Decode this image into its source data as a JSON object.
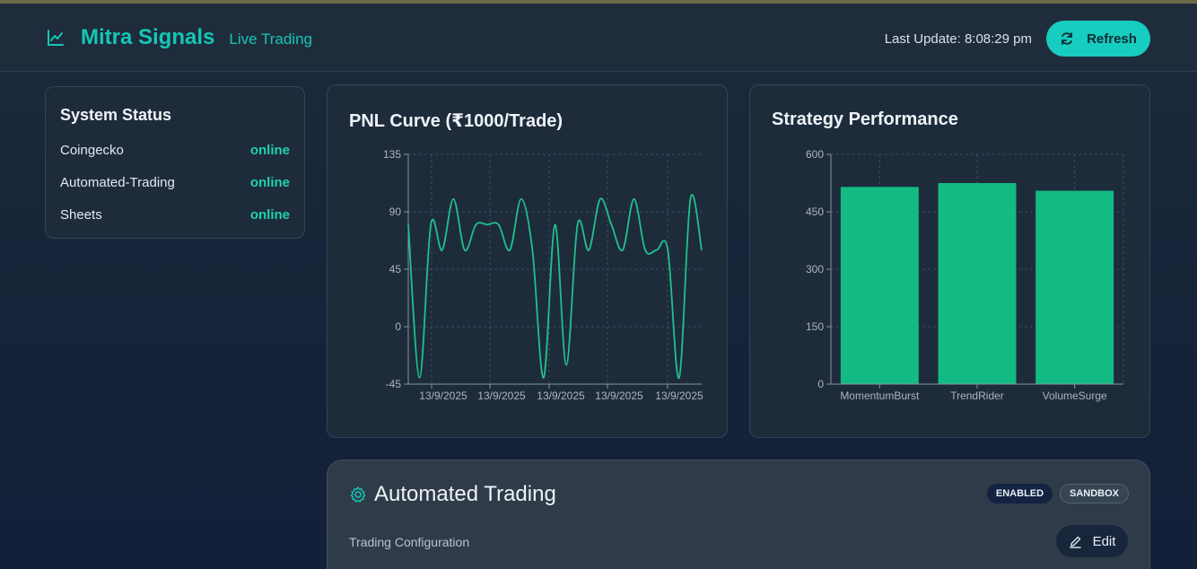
{
  "header": {
    "brand_title": "Mitra Signals",
    "brand_subtitle": "Live Trading",
    "last_update": "Last Update: 8:08:29 pm",
    "refresh_label": "Refresh"
  },
  "status": {
    "title": "System Status",
    "services": [
      {
        "name": "Coingecko",
        "state": "online"
      },
      {
        "name": "Automated-Trading",
        "state": "online"
      },
      {
        "name": "Sheets",
        "state": "online"
      }
    ]
  },
  "chart_data": [
    {
      "type": "line",
      "title": "PNL Curve (₹1000/Trade)",
      "ylim": [
        -45,
        135
      ],
      "yticks": [
        -45,
        0,
        45,
        90,
        135
      ],
      "xtick_labels": [
        "13/9/2025",
        "13/9/2025",
        "13/9/2025",
        "13/9/2025",
        "13/9/2025"
      ],
      "grid": true,
      "color": "#21c08b",
      "series": [
        {
          "values": [
            80,
            -40,
            80,
            60,
            100,
            60,
            80,
            80,
            80,
            60,
            100,
            60,
            -40,
            80,
            -30,
            80,
            60,
            100,
            80,
            60,
            100,
            60,
            60,
            60,
            -40,
            100,
            60
          ]
        }
      ]
    },
    {
      "type": "bar",
      "title": "Strategy Performance",
      "categories": [
        "MomentumBurst",
        "TrendRider",
        "VolumeSurge"
      ],
      "values": [
        515,
        525,
        505
      ],
      "ylim": [
        0,
        600
      ],
      "yticks": [
        0,
        150,
        300,
        450,
        600
      ],
      "grid": true,
      "color": "#13ba83"
    }
  ],
  "automation": {
    "title": "Automated Trading",
    "badge_enabled": "ENABLED",
    "badge_mode": "SANDBOX",
    "config_label": "Trading Configuration",
    "edit_label": "Edit"
  }
}
